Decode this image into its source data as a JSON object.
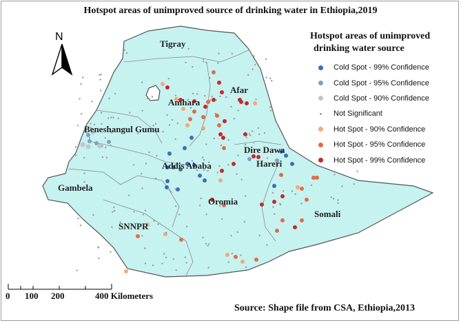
{
  "title": "Hotspot areas of unimproved source of drinking water in Ethiopia,2019",
  "legend": {
    "title_line1": "Hotspot areas of unimproved",
    "title_line2": "drinking water source",
    "items": [
      {
        "label": "Cold Spot - 99% Confidence",
        "color": "#3a6fb5",
        "size": 7
      },
      {
        "label": "Cold Spot - 95% Confidence",
        "color": "#7f9fc2",
        "size": 7
      },
      {
        "label": "Cold Spot - 90% Confidence",
        "color": "#c2c6c8",
        "size": 7
      },
      {
        "label": "Not Significant",
        "color": "#9a9a9a",
        "size": 3
      },
      {
        "label": "Hot Spot - 90% Confidence",
        "color": "#f2a87a",
        "size": 7
      },
      {
        "label": "Hot Spot - 95% Confidence",
        "color": "#e46b45",
        "size": 7
      },
      {
        "label": "Hot Spot - 99% Confidence",
        "color": "#c8282a",
        "size": 7
      }
    ]
  },
  "regions": [
    "Tigray",
    "Afar",
    "Amhara",
    "Beneshangul Gumu",
    "Dire Dawa",
    "Hareri",
    "Addis Ababa",
    "Gambela",
    "Oromia",
    "SNNPR",
    "Somali"
  ],
  "north_arrow": {
    "letter": "N"
  },
  "scale_bar": {
    "labels": [
      "0",
      "100",
      "200",
      "400 Kilometers"
    ]
  },
  "source": "Source: Shape file from CSA, Ethiopia,2013",
  "colors": {
    "land": "#c6f2f0",
    "border": "#7a7a7a"
  }
}
